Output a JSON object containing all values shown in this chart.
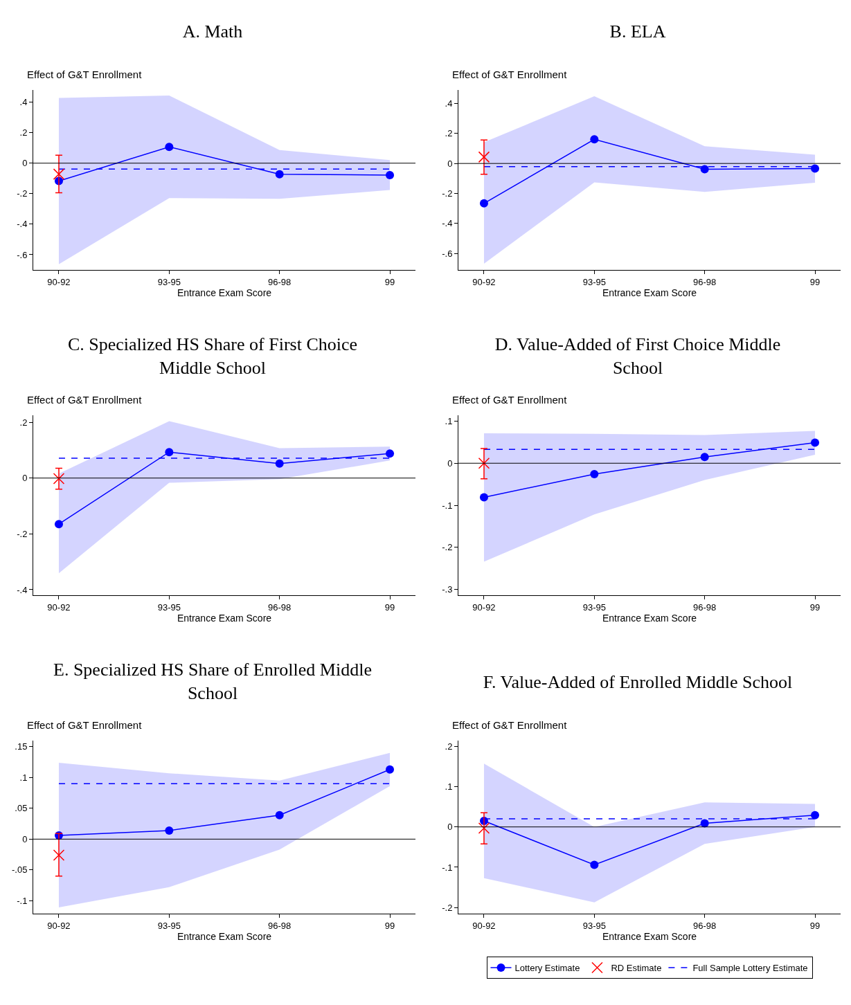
{
  "chart_data": [
    {
      "type": "line",
      "title": "A. Math",
      "xlabel": "Entrance Exam Score",
      "ylabel": "Effect of G&T Enrollment",
      "categories": [
        "90-92",
        "93-95",
        "96-98",
        "99"
      ],
      "ylim": [
        -0.7,
        0.48
      ],
      "yticks": [
        {
          "value": -0.6,
          "label": "-.6"
        },
        {
          "value": -0.4,
          "label": "-.4"
        },
        {
          "value": -0.2,
          "label": "-.2"
        },
        {
          "value": 0,
          "label": "0"
        },
        {
          "value": 0.2,
          "label": ".2"
        },
        {
          "value": 0.4,
          "label": ".4"
        }
      ],
      "grid": false,
      "legend": false,
      "series": [
        {
          "type": "line",
          "color": "#0000ff",
          "marker": "circle",
          "line_style": "solid",
          "values": [
            -0.117,
            0.107,
            -0.073,
            -0.078
          ],
          "lower": [
            -0.662,
            -0.229,
            -0.234,
            -0.176
          ],
          "upper": [
            0.428,
            0.444,
            0.086,
            0.02
          ]
        },
        {
          "type": "scatter",
          "color": "#ff0000",
          "marker": "cross",
          "values": [
            -0.072,
            null,
            null,
            null
          ],
          "errors": [
            [
              -0.194,
              0.052
            ],
            null,
            null,
            null
          ]
        }
      ],
      "ref_lines": [
        {
          "axis": "y",
          "value": 0,
          "color": "#000000",
          "line_style": "solid"
        },
        {
          "axis": "y",
          "value": -0.039,
          "color": "#0000ff",
          "line_style": "dashed"
        }
      ]
    },
    {
      "type": "line",
      "title": "B. ELA",
      "xlabel": "Entrance Exam Score",
      "ylabel": "Effect of G&T Enrollment",
      "categories": [
        "90-92",
        "93-95",
        "96-98",
        "99"
      ],
      "ylim": [
        -0.71,
        0.49
      ],
      "yticks": [
        {
          "value": -0.6,
          "label": "-.6"
        },
        {
          "value": -0.4,
          "label": "-.4"
        },
        {
          "value": -0.2,
          "label": "-.2"
        },
        {
          "value": 0,
          "label": "0"
        },
        {
          "value": 0.2,
          "label": ".2"
        },
        {
          "value": 0.4,
          "label": ".4"
        }
      ],
      "grid": false,
      "legend": false,
      "series": [
        {
          "type": "line",
          "color": "#0000ff",
          "marker": "circle",
          "line_style": "solid",
          "values": [
            -0.266,
            0.161,
            -0.038,
            -0.034
          ],
          "lower": [
            -0.669,
            -0.126,
            -0.19,
            -0.128
          ],
          "upper": [
            0.141,
            0.448,
            0.115,
            0.059
          ]
        },
        {
          "type": "scatter",
          "color": "#ff0000",
          "marker": "cross",
          "values": [
            0.043,
            null,
            null,
            null
          ],
          "errors": [
            [
              -0.072,
              0.157
            ],
            null,
            null,
            null
          ]
        }
      ],
      "ref_lines": [
        {
          "axis": "y",
          "value": 0,
          "color": "#000000",
          "line_style": "solid"
        },
        {
          "axis": "y",
          "value": -0.021,
          "color": "#0000ff",
          "line_style": "dashed"
        }
      ]
    },
    {
      "type": "line",
      "title": "C. Specialized HS Share of First Choice Middle School",
      "xlabel": "Entrance Exam Score",
      "ylabel": "Effect of G&T Enrollment",
      "categories": [
        "90-92",
        "93-95",
        "96-98",
        "99"
      ],
      "ylim": [
        -0.42,
        0.225
      ],
      "yticks": [
        {
          "value": -0.4,
          "label": "-.4"
        },
        {
          "value": -0.2,
          "label": "-.2"
        },
        {
          "value": 0,
          "label": "0"
        },
        {
          "value": 0.2,
          "label": ".2"
        }
      ],
      "grid": false,
      "legend": false,
      "series": [
        {
          "type": "line",
          "color": "#0000ff",
          "marker": "circle",
          "line_style": "solid",
          "values": [
            -0.165,
            0.093,
            0.052,
            0.088
          ],
          "lower": [
            -0.341,
            -0.017,
            -0.004,
            0.063
          ],
          "upper": [
            0.016,
            0.204,
            0.107,
            0.113
          ]
        },
        {
          "type": "scatter",
          "color": "#ff0000",
          "marker": "cross",
          "values": [
            -0.002,
            null,
            null,
            null
          ],
          "errors": [
            [
              -0.04,
              0.035
            ],
            null,
            null,
            null
          ]
        }
      ],
      "ref_lines": [
        {
          "axis": "y",
          "value": 0,
          "color": "#000000",
          "line_style": "solid"
        },
        {
          "axis": "y",
          "value": 0.071,
          "color": "#0000ff",
          "line_style": "dashed"
        }
      ]
    },
    {
      "type": "line",
      "title": "D. Value-Added of First Choice Middle School",
      "xlabel": "Entrance Exam Score",
      "ylabel": "Effect of G&T Enrollment",
      "categories": [
        "90-92",
        "93-95",
        "96-98",
        "99"
      ],
      "ylim": [
        -0.314,
        0.114
      ],
      "yticks": [
        {
          "value": -0.3,
          "label": "-.3"
        },
        {
          "value": -0.2,
          "label": "-.2"
        },
        {
          "value": -0.1,
          "label": "-.1"
        },
        {
          "value": 0,
          "label": "0"
        },
        {
          "value": 0.1,
          "label": ".1"
        }
      ],
      "grid": false,
      "legend": false,
      "series": [
        {
          "type": "line",
          "color": "#0000ff",
          "marker": "circle",
          "line_style": "solid",
          "values": [
            -0.081,
            -0.026,
            0.015,
            0.049
          ],
          "lower": [
            -0.234,
            -0.122,
            -0.04,
            0.02
          ],
          "upper": [
            0.071,
            0.07,
            0.067,
            0.077
          ]
        },
        {
          "type": "scatter",
          "color": "#ff0000",
          "marker": "cross",
          "values": [
            0,
            null,
            null,
            null
          ],
          "errors": [
            [
              -0.037,
              0.035
            ],
            null,
            null,
            null
          ]
        }
      ],
      "ref_lines": [
        {
          "axis": "y",
          "value": 0,
          "color": "#000000",
          "line_style": "solid"
        },
        {
          "axis": "y",
          "value": 0.033,
          "color": "#0000ff",
          "line_style": "dashed"
        }
      ]
    },
    {
      "type": "line",
      "title": "E. Specialized HS Share of Enrolled Middle School",
      "xlabel": "Entrance Exam Score",
      "ylabel": "Effect of G&T Enrollment",
      "categories": [
        "90-92",
        "93-95",
        "96-98",
        "99"
      ],
      "ylim": [
        -0.121,
        0.16
      ],
      "yticks": [
        {
          "value": -0.1,
          "label": "-.1"
        },
        {
          "value": -0.05,
          "label": "-.05"
        },
        {
          "value": 0,
          "label": "0"
        },
        {
          "value": 0.05,
          "label": ".05"
        },
        {
          "value": 0.1,
          "label": ".1"
        },
        {
          "value": 0.15,
          "label": ".15"
        }
      ],
      "grid": false,
      "legend": false,
      "series": [
        {
          "type": "line",
          "color": "#0000ff",
          "marker": "circle",
          "line_style": "solid",
          "values": [
            0.006,
            0.014,
            0.039,
            0.113
          ],
          "lower": [
            -0.111,
            -0.078,
            -0.017,
            0.086
          ],
          "upper": [
            0.124,
            0.107,
            0.095,
            0.14
          ]
        },
        {
          "type": "scatter",
          "color": "#ff0000",
          "marker": "cross",
          "values": [
            -0.026,
            null,
            null,
            null
          ],
          "errors": [
            [
              -0.06,
              0.009
            ],
            null,
            null,
            null
          ]
        }
      ],
      "ref_lines": [
        {
          "axis": "y",
          "value": 0,
          "color": "#000000",
          "line_style": "solid"
        },
        {
          "axis": "y",
          "value": 0.09,
          "color": "#0000ff",
          "line_style": "dashed"
        }
      ]
    },
    {
      "type": "line",
      "title": "F. Value-Added of Enrolled Middle School",
      "xlabel": "Entrance Exam Score",
      "ylabel": "Effect of G&T Enrollment",
      "categories": [
        "90-92",
        "93-95",
        "96-98",
        "99"
      ],
      "ylim": [
        -0.215,
        0.214
      ],
      "yticks": [
        {
          "value": -0.2,
          "label": "-.2"
        },
        {
          "value": -0.1,
          "label": "-.1"
        },
        {
          "value": 0,
          "label": "0"
        },
        {
          "value": 0.1,
          "label": ".1"
        },
        {
          "value": 0.2,
          "label": ".2"
        }
      ],
      "grid": false,
      "legend": "bottom",
      "series": [
        {
          "name": "Lottery Estimate",
          "type": "line",
          "color": "#0000ff",
          "marker": "circle",
          "line_style": "solid",
          "values": [
            0.015,
            -0.094,
            0.009,
            0.029
          ],
          "lower": [
            -0.127,
            -0.187,
            -0.042,
            0
          ],
          "upper": [
            0.157,
            0,
            0.061,
            0.057
          ]
        },
        {
          "name": "RD Estimate",
          "type": "scatter",
          "color": "#ff0000",
          "marker": "cross",
          "values": [
            -0.003,
            null,
            null,
            null
          ],
          "errors": [
            [
              -0.042,
              0.035
            ],
            null,
            null,
            null
          ]
        }
      ],
      "ref_lines": [
        {
          "axis": "y",
          "value": 0,
          "color": "#000000",
          "line_style": "solid"
        },
        {
          "axis": "y",
          "value": 0.02,
          "color": "#0000ff",
          "line_style": "dashed",
          "label": "Full Sample Lottery Estimate"
        }
      ]
    }
  ]
}
